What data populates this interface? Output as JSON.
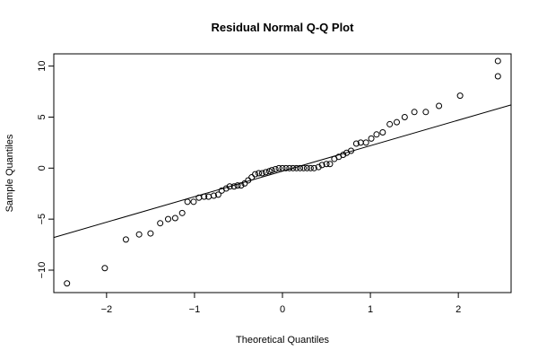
{
  "chart_data": {
    "type": "scatter",
    "title": "Residual Normal Q-Q Plot",
    "xlabel": "Theoretical Quantiles",
    "ylabel": "Sample Quantiles",
    "xlim": [
      -2.6,
      2.6
    ],
    "ylim": [
      -12.2,
      11.2
    ],
    "x_ticks": [
      -2,
      -1,
      0,
      1,
      2
    ],
    "y_ticks": [
      -10,
      -5,
      0,
      5,
      10
    ],
    "grid": false,
    "points": [
      {
        "x": -2.45,
        "y": -11.3
      },
      {
        "x": -2.02,
        "y": -9.8
      },
      {
        "x": -1.78,
        "y": -7.0
      },
      {
        "x": -1.63,
        "y": -6.5
      },
      {
        "x": -1.5,
        "y": -6.4
      },
      {
        "x": -1.39,
        "y": -5.4
      },
      {
        "x": -1.3,
        "y": -5.0
      },
      {
        "x": -1.22,
        "y": -4.9
      },
      {
        "x": -1.14,
        "y": -4.4
      },
      {
        "x": -1.08,
        "y": -3.3
      },
      {
        "x": -1.01,
        "y": -3.3
      },
      {
        "x": -0.95,
        "y": -2.9
      },
      {
        "x": -0.89,
        "y": -2.8
      },
      {
        "x": -0.84,
        "y": -2.8
      },
      {
        "x": -0.78,
        "y": -2.7
      },
      {
        "x": -0.73,
        "y": -2.6
      },
      {
        "x": -0.69,
        "y": -2.2
      },
      {
        "x": -0.64,
        "y": -2.0
      },
      {
        "x": -0.6,
        "y": -1.8
      },
      {
        "x": -0.55,
        "y": -1.8
      },
      {
        "x": -0.51,
        "y": -1.7
      },
      {
        "x": -0.47,
        "y": -1.7
      },
      {
        "x": -0.43,
        "y": -1.5
      },
      {
        "x": -0.39,
        "y": -1.2
      },
      {
        "x": -0.35,
        "y": -0.9
      },
      {
        "x": -0.31,
        "y": -0.6
      },
      {
        "x": -0.27,
        "y": -0.5
      },
      {
        "x": -0.23,
        "y": -0.5
      },
      {
        "x": -0.19,
        "y": -0.4
      },
      {
        "x": -0.15,
        "y": -0.3
      },
      {
        "x": -0.12,
        "y": -0.2
      },
      {
        "x": -0.08,
        "y": -0.1
      },
      {
        "x": -0.04,
        "y": 0.0
      },
      {
        "x": 0.0,
        "y": 0.0
      },
      {
        "x": 0.04,
        "y": 0.0
      },
      {
        "x": 0.08,
        "y": 0.0
      },
      {
        "x": 0.12,
        "y": 0.0
      },
      {
        "x": 0.16,
        "y": 0.0
      },
      {
        "x": 0.2,
        "y": 0.0
      },
      {
        "x": 0.24,
        "y": 0.0
      },
      {
        "x": 0.28,
        "y": 0.0
      },
      {
        "x": 0.32,
        "y": 0.0
      },
      {
        "x": 0.36,
        "y": 0.0
      },
      {
        "x": 0.41,
        "y": 0.1
      },
      {
        "x": 0.45,
        "y": 0.3
      },
      {
        "x": 0.5,
        "y": 0.4
      },
      {
        "x": 0.54,
        "y": 0.4
      },
      {
        "x": 0.59,
        "y": 0.9
      },
      {
        "x": 0.64,
        "y": 1.1
      },
      {
        "x": 0.69,
        "y": 1.3
      },
      {
        "x": 0.73,
        "y": 1.5
      },
      {
        "x": 0.78,
        "y": 1.7
      },
      {
        "x": 0.84,
        "y": 2.4
      },
      {
        "x": 0.89,
        "y": 2.5
      },
      {
        "x": 0.95,
        "y": 2.5
      },
      {
        "x": 1.01,
        "y": 2.9
      },
      {
        "x": 1.07,
        "y": 3.3
      },
      {
        "x": 1.14,
        "y": 3.5
      },
      {
        "x": 1.22,
        "y": 4.3
      },
      {
        "x": 1.3,
        "y": 4.5
      },
      {
        "x": 1.39,
        "y": 5.0
      },
      {
        "x": 1.5,
        "y": 5.5
      },
      {
        "x": 1.63,
        "y": 5.5
      },
      {
        "x": 1.78,
        "y": 6.1
      },
      {
        "x": 2.02,
        "y": 7.1
      },
      {
        "x": 2.45,
        "y": 9.0
      },
      {
        "x": 2.45,
        "y": 10.5
      }
    ],
    "reference_line": {
      "intercept": -0.3,
      "slope": 2.5
    }
  }
}
